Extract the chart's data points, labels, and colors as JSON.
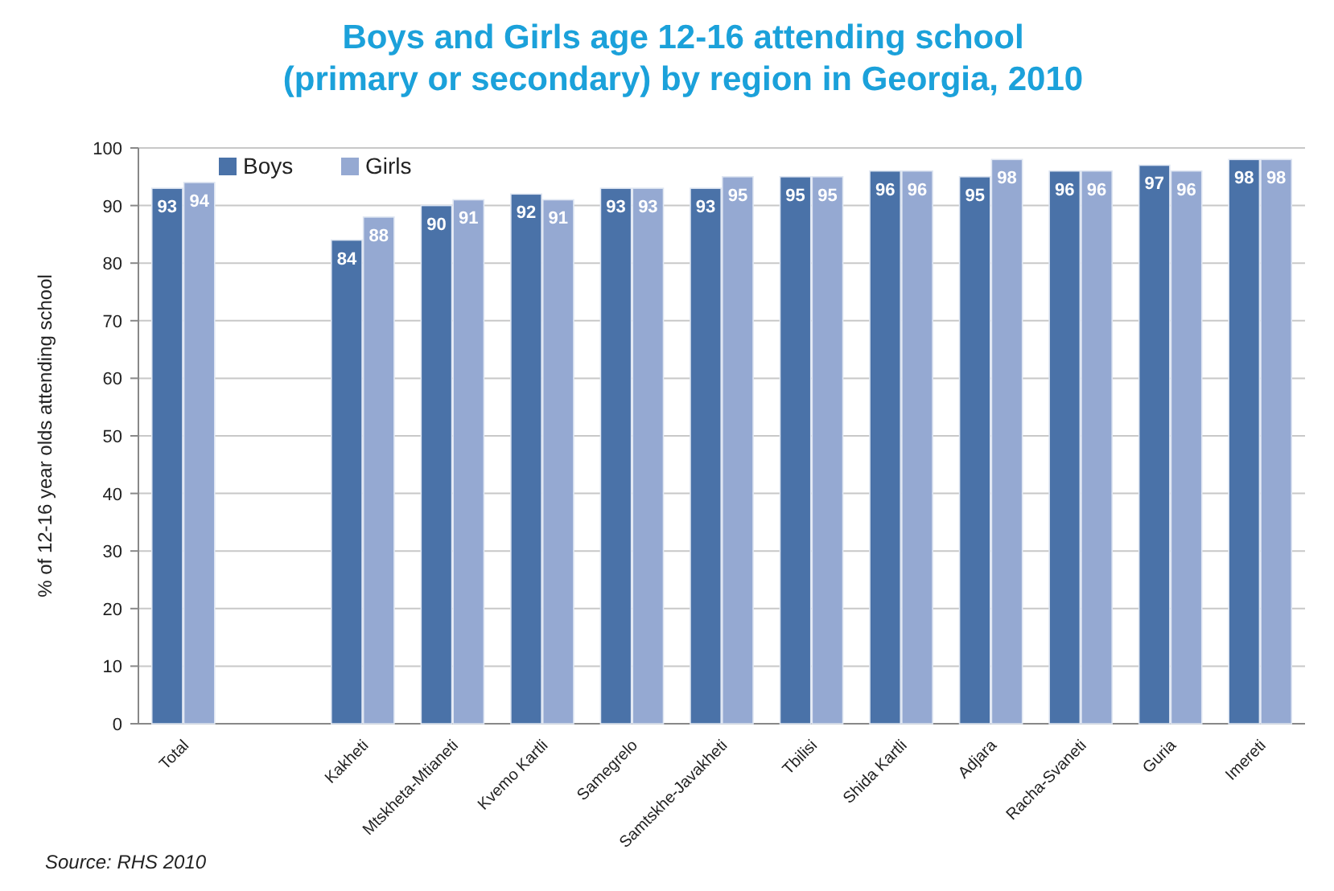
{
  "chart_data": {
    "type": "bar",
    "title": "Boys and Girls age 12-16 attending school\n(primary or secondary) by region in Georgia, 2010",
    "ylabel": "% of 12-16 year olds attending school",
    "annotations": [
      "Source: RHS 2010"
    ],
    "categories": [
      "Total",
      null,
      "Kakheti",
      "Mtskheta-Mtianeti",
      "Kvemo Kartli",
      "Samegrelo",
      "Samtskhe-Javakheti",
      "Tbilisi",
      "Shida Kartli",
      "Adjara",
      "Racha-Svaneti",
      "Guria",
      "Imereti"
    ],
    "series": [
      {
        "name": "Boys",
        "color": "#4a72a8",
        "values": [
          93,
          null,
          84,
          90,
          92,
          93,
          93,
          95,
          96,
          95,
          96,
          97,
          98
        ]
      },
      {
        "name": "Girls",
        "color": "#95a9d2",
        "values": [
          94,
          null,
          88,
          91,
          91,
          93,
          95,
          95,
          96,
          98,
          96,
          96,
          98
        ]
      }
    ],
    "ylim": [
      0,
      100
    ],
    "yticks": [
      0,
      10,
      20,
      30,
      40,
      50,
      60,
      70,
      80,
      90,
      100
    ],
    "grid": "y",
    "legend": "top left",
    "data_labels": true
  }
}
